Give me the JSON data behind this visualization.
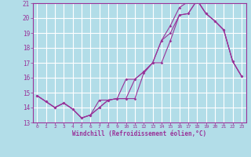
{
  "xlabel": "Windchill (Refroidissement éolien,°C)",
  "background_color": "#b2dde8",
  "grid_color": "#ffffff",
  "line_color": "#993399",
  "xmin": -0.5,
  "xmax": 23.5,
  "ymin": 13,
  "ymax": 21,
  "yticks": [
    13,
    14,
    15,
    16,
    17,
    18,
    19,
    20,
    21
  ],
  "xticks": [
    0,
    1,
    2,
    3,
    4,
    5,
    6,
    7,
    8,
    9,
    10,
    11,
    12,
    13,
    14,
    15,
    16,
    17,
    18,
    19,
    20,
    21,
    22,
    23
  ],
  "line1_x": [
    0,
    1,
    2,
    3,
    4,
    5,
    6,
    7,
    8,
    9,
    10,
    11,
    12,
    13,
    14,
    15,
    16,
    17,
    18,
    19,
    20,
    21,
    22,
    23
  ],
  "line1_y": [
    14.8,
    14.4,
    14.0,
    14.3,
    13.9,
    13.3,
    13.5,
    14.0,
    14.5,
    14.6,
    15.9,
    15.9,
    16.4,
    17.0,
    17.0,
    18.5,
    20.2,
    20.3,
    21.2,
    20.3,
    19.8,
    19.2,
    17.1,
    16.1
  ],
  "line2_x": [
    0,
    1,
    2,
    3,
    4,
    5,
    6,
    7,
    8,
    9,
    10,
    11,
    12,
    13,
    14,
    15,
    16,
    17,
    18,
    19,
    20,
    21,
    22,
    23
  ],
  "line2_y": [
    14.8,
    14.4,
    14.0,
    14.3,
    13.9,
    13.3,
    13.5,
    14.0,
    14.5,
    14.6,
    14.6,
    14.6,
    16.3,
    17.0,
    18.5,
    19.0,
    20.2,
    20.3,
    21.2,
    20.3,
    19.8,
    19.2,
    17.1,
    16.1
  ],
  "line3_x": [
    0,
    1,
    2,
    3,
    4,
    5,
    6,
    7,
    8,
    9,
    10,
    11,
    12,
    13,
    14,
    15,
    16,
    17,
    18,
    19,
    20,
    21,
    22,
    23
  ],
  "line3_y": [
    14.8,
    14.4,
    14.0,
    14.3,
    13.9,
    13.3,
    13.5,
    14.5,
    14.5,
    14.6,
    14.6,
    15.9,
    16.4,
    17.0,
    18.5,
    19.5,
    20.7,
    21.1,
    21.2,
    20.3,
    19.8,
    19.2,
    17.1,
    16.1
  ]
}
